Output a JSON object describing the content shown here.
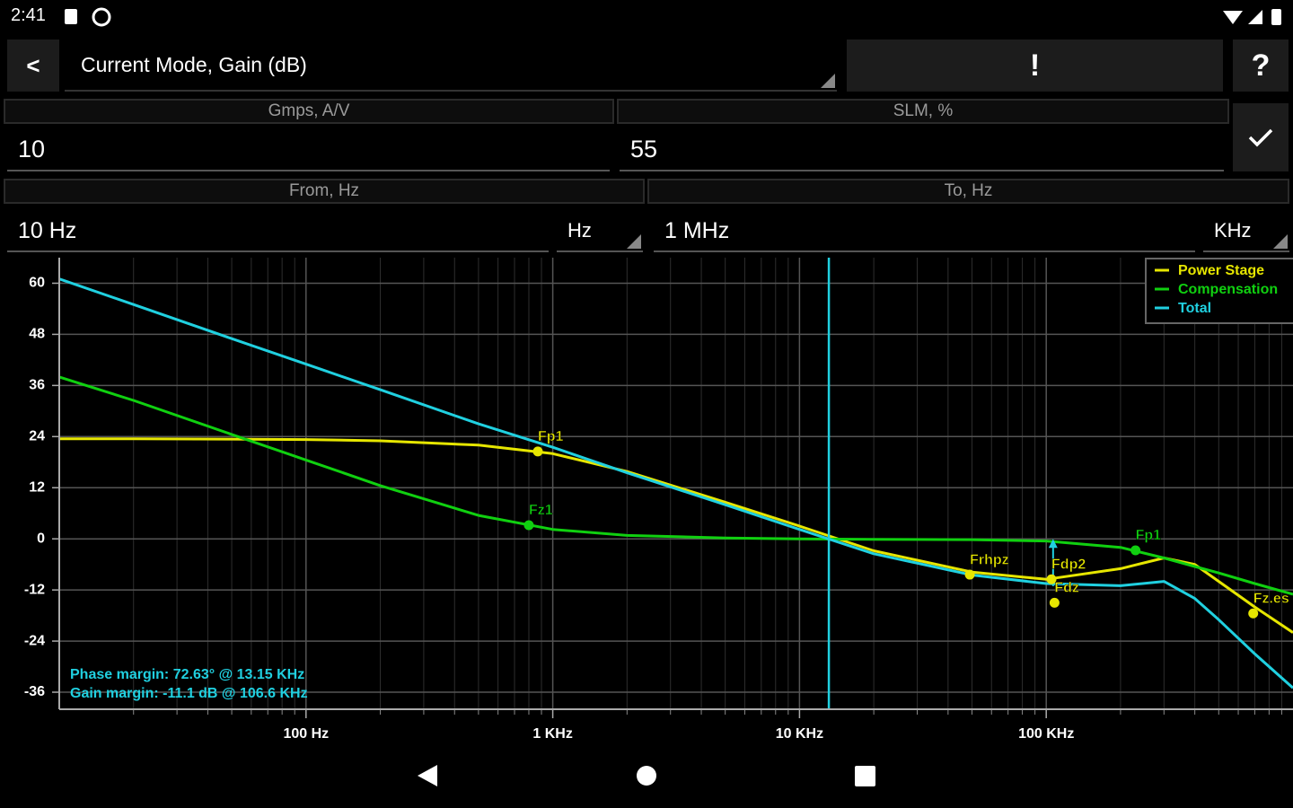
{
  "status_bar": {
    "time": "2:41"
  },
  "toolbar": {
    "title": "Current Mode, Gain (dB)",
    "alert_button": "!",
    "help_button": "?"
  },
  "form": {
    "fields": [
      {
        "label": "Gmps, A/V",
        "value": "10"
      },
      {
        "label": "SLM, %",
        "value": "55"
      },
      {
        "label": "From, Hz",
        "value": "10 Hz",
        "unit": "Hz"
      },
      {
        "label": "To, Hz",
        "value": "1 MHz",
        "unit": "KHz"
      }
    ]
  },
  "chart_data": {
    "type": "line",
    "xscale": "log",
    "x": [
      10,
      20,
      50,
      100,
      200,
      500,
      1000,
      2000,
      5000,
      10000,
      20000,
      50000,
      100000,
      200000,
      300000,
      400000,
      500000,
      700000,
      1000000
    ],
    "series": [
      {
        "name": "Power Stage",
        "color": "#e6e600",
        "values": [
          23.5,
          23.5,
          23.4,
          23.3,
          23,
          22,
          20,
          15.8,
          8.6,
          3,
          -2.8,
          -7.8,
          -9.5,
          -7,
          -4.5,
          -6,
          -10,
          -16,
          -22
        ]
      },
      {
        "name": "Compensation",
        "color": "#10d010",
        "values": [
          38,
          32.5,
          24.5,
          18.5,
          12.5,
          5.5,
          2.2,
          0.8,
          0.2,
          0,
          -0.1,
          -0.2,
          -0.5,
          -2,
          -4.5,
          -6.5,
          -8,
          -10.5,
          -13
        ]
      },
      {
        "name": "Total",
        "color": "#20d0e0",
        "values": [
          61,
          55,
          47,
          41,
          35,
          27,
          21.5,
          15.5,
          8,
          2.2,
          -3.5,
          -8.5,
          -10.5,
          -11,
          -10,
          -14,
          -19,
          -27,
          -35
        ]
      }
    ],
    "xlim": [
      10,
      1000000
    ],
    "ylim": [
      -40,
      66
    ],
    "xticks": [
      {
        "value": 100,
        "label": "100 Hz"
      },
      {
        "value": 1000,
        "label": "1 KHz"
      },
      {
        "value": 10000,
        "label": "10 KHz"
      },
      {
        "value": 100000,
        "label": "100 KHz"
      }
    ],
    "xminorticks": [
      20,
      30,
      40,
      50,
      60,
      70,
      80,
      90,
      200,
      300,
      400,
      500,
      600,
      700,
      800,
      900,
      2000,
      3000,
      4000,
      5000,
      6000,
      7000,
      8000,
      9000,
      20000,
      30000,
      40000,
      50000,
      60000,
      70000,
      80000,
      90000,
      200000,
      300000,
      400000,
      500000,
      600000,
      700000,
      800000,
      900000
    ],
    "yticks": [
      60,
      48,
      36,
      24,
      12,
      0,
      -12,
      -24,
      -36
    ],
    "grid": true,
    "legend": "top-right",
    "crossover": 13150,
    "gain_margin": {
      "x": 106600,
      "y": -11.1
    },
    "markers": [
      {
        "label": "Fp1",
        "x": 870,
        "y": 20.5,
        "color": "#e6e600"
      },
      {
        "label": "Fz1",
        "x": 800,
        "y": 3.2,
        "color": "#10d010"
      },
      {
        "label": "Frhpz",
        "x": 49000,
        "y": -8.4,
        "color": "#e6e600"
      },
      {
        "label": "Fdp2",
        "x": 105000,
        "y": -9.5,
        "color": "#e6e600"
      },
      {
        "label": "Fdz",
        "x": 108000,
        "y": -15,
        "color": "#e6e600"
      },
      {
        "label": "Fp1",
        "x": 230000,
        "y": -2.7,
        "color": "#10d010"
      },
      {
        "label": "Fz.es",
        "x": 690000,
        "y": -17.5,
        "color": "#e6e600"
      }
    ],
    "annotations": [
      "Phase margin: 72.63° @ 13.15 KHz",
      "Gain margin: -11.1 dB @ 106.6 KHz"
    ]
  }
}
